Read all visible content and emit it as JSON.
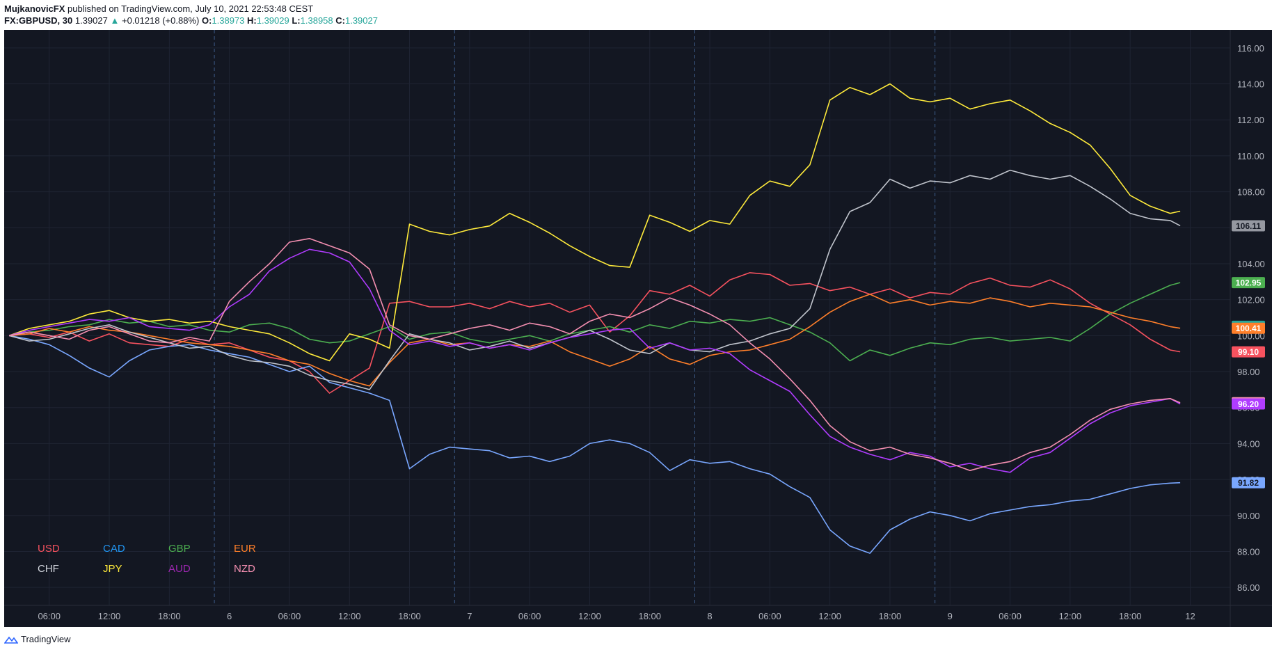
{
  "header": {
    "author": "MujkanovicFX",
    "published": "published on TradingView.com, July 10, 2021 22:53:48 CEST",
    "symbol": "FX:GBPUSD, 30",
    "last": "1.39027",
    "arrow": "▲",
    "change": "+0.01218 (+0.88%)",
    "o_label": "O:",
    "o": "1.38973",
    "h_label": "H:",
    "h": "1.39029",
    "l_label": "L:",
    "l": "1.38958",
    "c_label": "C:",
    "c": "1.39027"
  },
  "footer": {
    "brand": "TradingView"
  },
  "chart_data": {
    "type": "line",
    "background": "#131722",
    "grid": true,
    "ylim": [
      85,
      117
    ],
    "y_ticks": [
      "86.00",
      "88.00",
      "90.00",
      "92.00",
      "94.00",
      "96.00",
      "98.00",
      "100.00",
      "102.00",
      "104.00",
      "106.00",
      "108.00",
      "110.00",
      "112.00",
      "114.00",
      "116.00"
    ],
    "x_ticks": [
      "06:00",
      "12:00",
      "18:00",
      "6",
      "06:00",
      "12:00",
      "18:00",
      "7",
      "06:00",
      "12:00",
      "18:00",
      "8",
      "06:00",
      "12:00",
      "18:00",
      "9",
      "06:00",
      "12:00",
      "18:00",
      "12"
    ],
    "x_tick_pos": [
      4,
      10,
      16,
      22,
      28,
      34,
      40,
      46,
      52,
      58,
      64,
      70,
      76,
      82,
      88,
      94,
      100,
      106,
      112,
      118
    ],
    "xlim": [
      -0.5,
      122
    ],
    "x": [
      0,
      2,
      4,
      6,
      8,
      10,
      12,
      14,
      16,
      18,
      20,
      22,
      24,
      26,
      28,
      30,
      32,
      34,
      36,
      38,
      40,
      42,
      44,
      46,
      48,
      50,
      52,
      54,
      56,
      58,
      60,
      62,
      64,
      66,
      68,
      70,
      72,
      74,
      76,
      78,
      80,
      82,
      84,
      86,
      88,
      90,
      92,
      94,
      96,
      98,
      100,
      102,
      104,
      106,
      108,
      110,
      112,
      114,
      116,
      117
    ],
    "series": [
      {
        "name": "USD",
        "color": "#f7525f",
        "end": "99.10",
        "values": [
          100,
          100.1,
          99.9,
          100.2,
          99.7,
          100.1,
          99.6,
          99.5,
          99.4,
          99.8,
          99.5,
          99.6,
          99.2,
          98.8,
          98.6,
          98.0,
          96.8,
          97.5,
          98.2,
          101.8,
          101.9,
          101.6,
          101.6,
          101.8,
          101.5,
          101.9,
          101.6,
          101.8,
          101.3,
          101.7,
          100.2,
          101.1,
          102.5,
          102.3,
          102.8,
          102.2,
          103.1,
          103.5,
          103.4,
          102.8,
          102.9,
          102.5,
          102.7,
          102.3,
          102.6,
          102.1,
          102.4,
          102.3,
          102.9,
          103.2,
          102.8,
          102.7,
          103.1,
          102.6,
          101.8,
          101.2,
          100.6,
          99.8,
          99.2,
          99.1
        ]
      },
      {
        "name": "CAD",
        "color": "#79a7ff",
        "end": "91.82",
        "values": [
          100,
          99.8,
          99.5,
          98.9,
          98.2,
          97.7,
          98.6,
          99.2,
          99.4,
          99.5,
          99.2,
          99.0,
          98.8,
          98.4,
          98.0,
          98.3,
          97.4,
          97.1,
          96.8,
          96.4,
          92.6,
          93.4,
          93.8,
          93.7,
          93.6,
          93.2,
          93.3,
          93.0,
          93.3,
          94.0,
          94.2,
          94.0,
          93.5,
          92.5,
          93.1,
          92.9,
          93.0,
          92.6,
          92.3,
          91.6,
          91.0,
          89.2,
          88.3,
          87.9,
          89.2,
          89.8,
          90.2,
          90.0,
          89.7,
          90.1,
          90.3,
          90.5,
          90.6,
          90.8,
          90.9,
          91.2,
          91.5,
          91.7,
          91.8,
          91.82
        ]
      },
      {
        "name": "GBP",
        "color": "#4caf50",
        "end": "102.95",
        "values": [
          100,
          100.2,
          100.3,
          100.5,
          100.6,
          100.9,
          100.7,
          100.8,
          100.5,
          100.6,
          100.3,
          100.2,
          100.6,
          100.7,
          100.4,
          99.8,
          99.6,
          99.7,
          100.1,
          100.5,
          99.8,
          100.1,
          100.2,
          99.8,
          99.6,
          99.8,
          100.0,
          99.7,
          100.1,
          100.3,
          100.5,
          100.2,
          100.6,
          100.4,
          100.8,
          100.7,
          100.9,
          100.8,
          101.0,
          100.6,
          100.2,
          99.6,
          98.6,
          99.2,
          98.9,
          99.3,
          99.6,
          99.5,
          99.8,
          99.9,
          99.7,
          99.8,
          99.9,
          99.7,
          100.4,
          101.2,
          101.8,
          102.3,
          102.8,
          102.95
        ]
      },
      {
        "name": "EUR",
        "color": "#ff7f2a",
        "end": "100.41",
        "values": [
          100,
          100.1,
          100.4,
          100.2,
          100.5,
          100.3,
          100.2,
          100.0,
          99.8,
          99.6,
          99.5,
          99.4,
          99.2,
          99.0,
          98.6,
          98.4,
          97.9,
          97.5,
          97.2,
          98.5,
          99.6,
          99.8,
          99.5,
          99.6,
          99.3,
          99.5,
          99.4,
          99.7,
          99.1,
          98.7,
          98.3,
          98.7,
          99.4,
          98.7,
          98.4,
          98.9,
          99.1,
          99.2,
          99.5,
          99.8,
          100.5,
          101.3,
          101.9,
          102.3,
          101.8,
          102.0,
          101.7,
          101.9,
          101.8,
          102.1,
          101.9,
          101.6,
          101.8,
          101.7,
          101.6,
          101.3,
          101.0,
          100.8,
          100.5,
          100.41
        ]
      },
      {
        "name": "CHF",
        "color": "#c0c4cc",
        "end": "106.11",
        "values": [
          100,
          99.7,
          99.8,
          100.1,
          100.4,
          100.6,
          100.2,
          99.9,
          99.6,
          99.3,
          99.4,
          98.9,
          98.6,
          98.5,
          98.3,
          97.8,
          97.5,
          97.3,
          97.0,
          98.6,
          100.1,
          99.8,
          99.6,
          99.2,
          99.4,
          99.7,
          99.3,
          99.6,
          99.9,
          100.3,
          99.8,
          99.2,
          99.0,
          99.6,
          99.2,
          99.1,
          99.5,
          99.7,
          100.1,
          100.4,
          101.5,
          104.8,
          106.9,
          107.4,
          108.7,
          108.2,
          108.6,
          108.5,
          108.9,
          108.7,
          109.2,
          108.9,
          108.7,
          108.9,
          108.3,
          107.6,
          106.8,
          106.5,
          106.4,
          106.11
        ]
      },
      {
        "name": "JPY",
        "color": "#ffeb3b",
        "end": "106.92",
        "values": [
          100,
          100.4,
          100.6,
          100.8,
          101.2,
          101.4,
          101.0,
          100.8,
          100.9,
          100.7,
          100.8,
          100.5,
          100.3,
          100.1,
          99.6,
          99.0,
          98.6,
          100.1,
          99.8,
          99.3,
          106.2,
          105.8,
          105.6,
          105.9,
          106.1,
          106.8,
          106.3,
          105.7,
          105.0,
          104.4,
          103.9,
          103.8,
          106.7,
          106.3,
          105.8,
          106.4,
          106.2,
          107.8,
          108.6,
          108.3,
          109.5,
          113.1,
          113.8,
          113.4,
          114.0,
          113.2,
          113.0,
          113.2,
          112.6,
          112.9,
          113.1,
          112.5,
          111.8,
          111.3,
          110.6,
          109.3,
          107.8,
          107.2,
          106.8,
          106.92
        ]
      },
      {
        "name": "AUD",
        "color": "#b03cff",
        "end": "96.20",
        "values": [
          100,
          100.3,
          100.5,
          100.7,
          100.9,
          100.8,
          101.0,
          100.5,
          100.4,
          100.3,
          100.6,
          101.6,
          102.3,
          103.6,
          104.3,
          104.8,
          104.6,
          104.1,
          102.6,
          100.3,
          99.5,
          99.7,
          99.4,
          99.6,
          99.3,
          99.5,
          99.2,
          99.6,
          99.9,
          100.1,
          100.3,
          100.4,
          99.3,
          99.6,
          99.2,
          99.3,
          99.0,
          98.1,
          97.5,
          96.9,
          95.6,
          94.4,
          93.8,
          93.4,
          93.1,
          93.5,
          93.3,
          92.7,
          92.9,
          92.6,
          92.4,
          93.2,
          93.5,
          94.3,
          95.1,
          95.7,
          96.1,
          96.3,
          96.5,
          96.2
        ]
      },
      {
        "name": "NZD",
        "color": "#f48fb1",
        "end": "96.27",
        "values": [
          100,
          100.2,
          100.0,
          99.8,
          100.3,
          100.5,
          100.1,
          99.7,
          99.6,
          99.9,
          99.7,
          101.9,
          103.0,
          104.0,
          105.2,
          105.4,
          105.0,
          104.6,
          103.7,
          100.6,
          100.0,
          99.8,
          100.1,
          100.4,
          100.6,
          100.3,
          100.7,
          100.5,
          100.1,
          100.8,
          101.2,
          101.0,
          101.5,
          102.1,
          101.7,
          101.2,
          100.6,
          99.6,
          98.7,
          97.6,
          96.4,
          95.0,
          94.1,
          93.6,
          93.8,
          93.4,
          93.2,
          92.9,
          92.5,
          92.8,
          93.0,
          93.5,
          93.8,
          94.5,
          95.3,
          95.9,
          96.2,
          96.4,
          96.5,
          96.27
        ]
      }
    ],
    "legend": [
      {
        "name": "USD",
        "color": "#f7525f"
      },
      {
        "name": "CAD",
        "color": "#2196f3"
      },
      {
        "name": "GBP",
        "color": "#4caf50"
      },
      {
        "name": "EUR",
        "color": "#ff7f2a"
      },
      {
        "name": "CHF",
        "color": "#d1d4dc"
      },
      {
        "name": "JPY",
        "color": "#ffeb3b"
      },
      {
        "name": "AUD",
        "color": "#9c27b0"
      },
      {
        "name": "NZD",
        "color": "#f48fb1"
      }
    ],
    "legend_position": "bottom-left",
    "price_labels": [
      {
        "text": "106.11",
        "value": 106.11,
        "bg": "#9598a1",
        "fg": "#131722"
      },
      {
        "text": "102.95",
        "value": 102.95,
        "bg": "#4caf50",
        "fg": "#ffffff"
      },
      {
        "text": "100.52",
        "value": 100.52,
        "bg": "#26a69a",
        "fg": "#ffffff"
      },
      {
        "text": "100.41",
        "value": 100.41,
        "bg": "#ff7f2a",
        "fg": "#ffffff"
      },
      {
        "text": "99.10",
        "value": 99.1,
        "bg": "#f7525f",
        "fg": "#ffffff"
      },
      {
        "text": "96.27",
        "value": 96.27,
        "bg": "#f48fb1",
        "fg": "#131722"
      },
      {
        "text": "96.20",
        "value": 96.2,
        "bg": "#b03cff",
        "fg": "#ffffff"
      },
      {
        "text": "91.82",
        "value": 91.82,
        "bg": "#79a7ff",
        "fg": "#131722"
      }
    ],
    "session_breaks": [
      22,
      46,
      70,
      94
    ]
  }
}
